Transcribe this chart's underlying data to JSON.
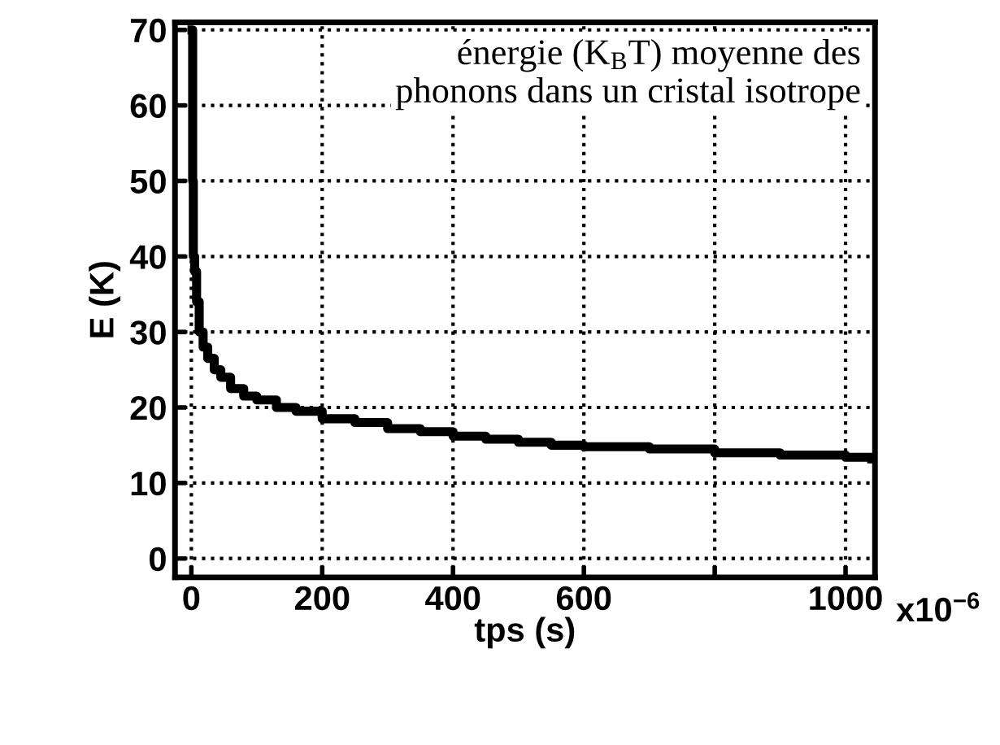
{
  "chart_data": {
    "type": "step",
    "xlabel": "tps (s)",
    "ylabel": "E (K)",
    "annotations": [
      "énergie (K$_{B}$T) moyenne des\nphonons dans un cristal isotrope",
      "x10$^{−6}$"
    ],
    "x": [
      1,
      2,
      3,
      5,
      8,
      12,
      18,
      25,
      35,
      45,
      60,
      80,
      100,
      130,
      160,
      200,
      250,
      300,
      350,
      400,
      450,
      500,
      550,
      600,
      700,
      800,
      900,
      1000,
      1040
    ],
    "series": [
      {
        "color": "#000000",
        "values": [
          70,
          50,
          40,
          38,
          34,
          30,
          28,
          26.5,
          25,
          24,
          22.5,
          21.5,
          21,
          20,
          19.5,
          18.5,
          18,
          17.2,
          16.8,
          16.2,
          15.8,
          15.4,
          15,
          14.8,
          14.5,
          14,
          13.7,
          13.4,
          13.2
        ]
      }
    ],
    "xlim": [
      -25,
      1045
    ],
    "ylim": [
      -2.5,
      71
    ],
    "xticks": [
      0,
      200,
      400,
      600,
      {
        "value": 800,
        "label": null
      },
      1000
    ],
    "yticks": [
      0,
      10,
      20,
      30,
      40,
      50,
      60,
      70
    ],
    "grid": true,
    "marker": "none",
    "line_style": "solid"
  }
}
